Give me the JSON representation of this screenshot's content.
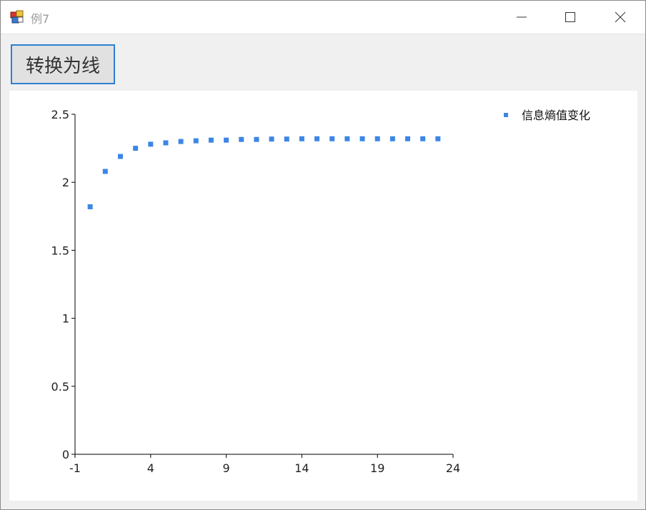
{
  "window": {
    "title": "例7",
    "controls": [
      "minimize-icon",
      "maximize-icon",
      "close-icon"
    ]
  },
  "toolbar": {
    "convert_label": "转换为线"
  },
  "colors": {
    "accent": "#2f7fd1",
    "series": "#3c86e6"
  },
  "chart_data": {
    "type": "scatter",
    "title": "",
    "xlabel": "",
    "ylabel": "",
    "xlim": [
      -1,
      24
    ],
    "ylim": [
      0,
      2.5
    ],
    "x_ticks": [
      -1,
      4,
      9,
      14,
      19,
      24
    ],
    "x_tick_labels": [
      "-1",
      "4",
      "9",
      "14",
      "19",
      "24"
    ],
    "y_ticks": [
      0,
      0.5,
      1,
      1.5,
      2,
      2.5
    ],
    "y_tick_labels": [
      "0",
      "0.5",
      "1",
      "1.5",
      "2",
      "2.5"
    ],
    "grid": false,
    "legend": "top-right",
    "series": [
      {
        "name": "信息熵值变化",
        "x": [
          0,
          1,
          2,
          3,
          4,
          5,
          6,
          7,
          8,
          9,
          10,
          11,
          12,
          13,
          14,
          15,
          16,
          17,
          18,
          19,
          20,
          21,
          22,
          23
        ],
        "y": [
          1.82,
          2.08,
          2.19,
          2.25,
          2.28,
          2.29,
          2.3,
          2.305,
          2.31,
          2.31,
          2.315,
          2.315,
          2.318,
          2.318,
          2.32,
          2.32,
          2.32,
          2.32,
          2.32,
          2.32,
          2.32,
          2.32,
          2.32,
          2.32
        ]
      }
    ]
  }
}
